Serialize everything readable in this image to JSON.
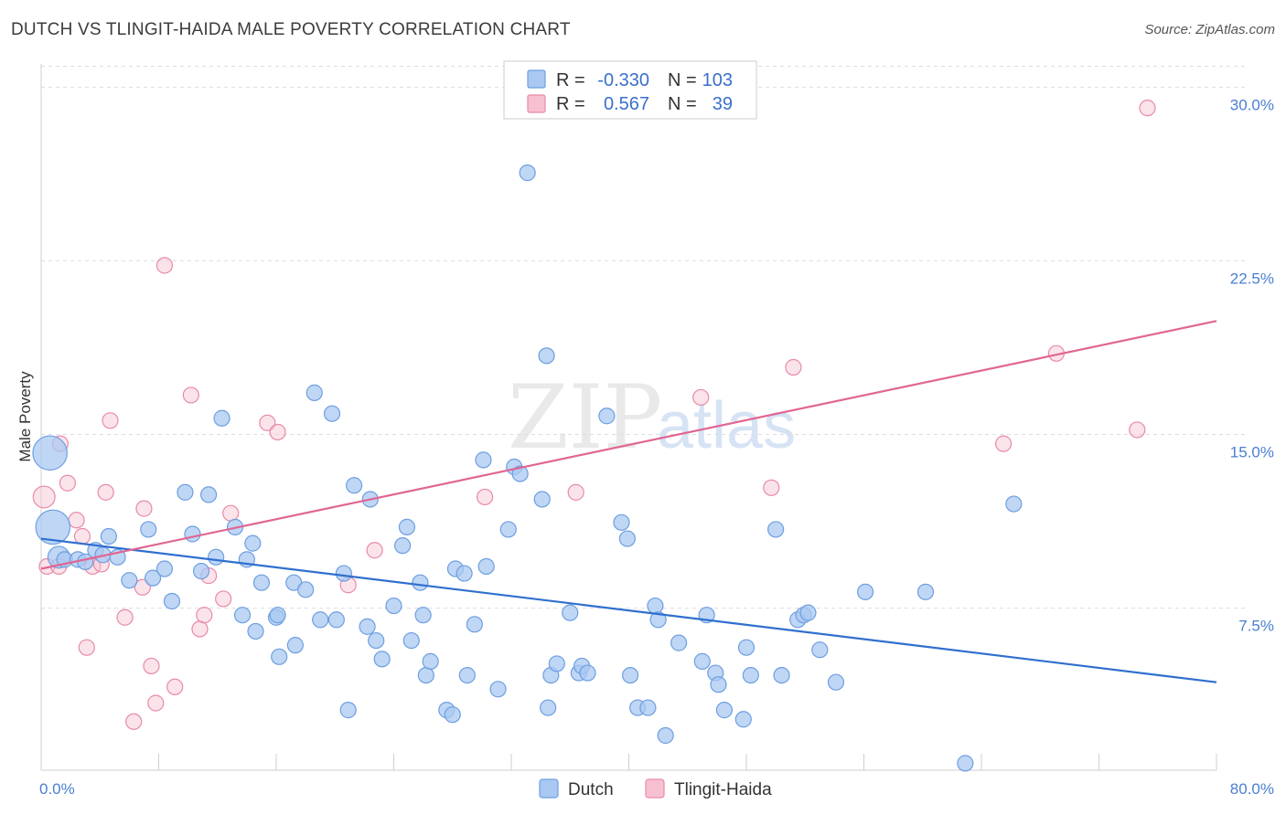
{
  "title": "DUTCH VS TLINGIT-HAIDA MALE POVERTY CORRELATION CHART",
  "source": "Source: ZipAtlas.com",
  "watermark": {
    "zip": "ZIP",
    "atlas": "atlas"
  },
  "colors": {
    "dutch_fill": "#a9c8f2",
    "dutch_stroke": "#6d9fe0",
    "dutch_line": "#2f6fcf",
    "tlingit_fill": "#f7c0d1",
    "tlingit_stroke": "#e88aa8",
    "tlingit_line": "#e06692",
    "tick_label": "#4a7fd0",
    "grid": "#dddddd"
  },
  "legend": {
    "rows": [
      {
        "r_label": "R =",
        "r_value": "-0.330",
        "n_label": "N =",
        "n_value": "103"
      },
      {
        "r_label": "R =",
        "r_value": "0.567",
        "n_label": "N =",
        "n_value": "39"
      }
    ]
  },
  "chart_data": {
    "type": "scatter",
    "ylabel": "Male Poverty",
    "xlim": [
      0,
      80
    ],
    "ylim": [
      0.5,
      31
    ],
    "x_tick_labels": [
      "0.0%",
      "80.0%"
    ],
    "y_ticks": [
      7.5,
      15.0,
      22.5,
      30.0
    ],
    "y_tick_labels": [
      "7.5%",
      "15.0%",
      "22.5%",
      "30.0%"
    ],
    "grid": true,
    "legend_position": "top-center",
    "series": [
      {
        "name": "Dutch",
        "r": -0.33,
        "n": 103,
        "trend": {
          "x": [
            0,
            80
          ],
          "y": [
            10.5,
            4.3
          ]
        },
        "points": [
          [
            0.6,
            14.2,
            2.2
          ],
          [
            0.8,
            11.0,
            2.2
          ],
          [
            1.2,
            9.7,
            1.4
          ],
          [
            1.6,
            9.6,
            1
          ],
          [
            2.5,
            9.6,
            1
          ],
          [
            3.0,
            9.5,
            1
          ],
          [
            3.7,
            10.0,
            1
          ],
          [
            4.6,
            10.6,
            1
          ],
          [
            4.2,
            9.8,
            1
          ],
          [
            5.2,
            9.7,
            1
          ],
          [
            6.0,
            8.7,
            1
          ],
          [
            7.6,
            8.8,
            1
          ],
          [
            7.3,
            10.9,
            1
          ],
          [
            8.4,
            9.2,
            1
          ],
          [
            8.9,
            7.8,
            1
          ],
          [
            9.8,
            12.5,
            1
          ],
          [
            10.3,
            10.7,
            1
          ],
          [
            10.9,
            9.1,
            1
          ],
          [
            11.4,
            12.4,
            1
          ],
          [
            11.9,
            9.7,
            1
          ],
          [
            12.3,
            15.7,
            1
          ],
          [
            13.2,
            11.0,
            1
          ],
          [
            13.7,
            7.2,
            1
          ],
          [
            14.4,
            10.3,
            1
          ],
          [
            14.6,
            6.5,
            1
          ],
          [
            15.0,
            8.6,
            1
          ],
          [
            16.0,
            7.1,
            1
          ],
          [
            16.1,
            7.2,
            1
          ],
          [
            16.2,
            5.4,
            1
          ],
          [
            17.2,
            8.6,
            1
          ],
          [
            17.3,
            5.9,
            1
          ],
          [
            18.0,
            8.3,
            1
          ],
          [
            18.6,
            16.8,
            1
          ],
          [
            19.0,
            7.0,
            1
          ],
          [
            19.8,
            15.9,
            1
          ],
          [
            20.1,
            7.0,
            1
          ],
          [
            20.6,
            9.0,
            1
          ],
          [
            20.9,
            3.1,
            1
          ],
          [
            21.3,
            12.8,
            1
          ],
          [
            22.2,
            6.7,
            1
          ],
          [
            22.4,
            12.2,
            1
          ],
          [
            22.8,
            6.1,
            1
          ],
          [
            23.2,
            5.3,
            1
          ],
          [
            24.0,
            7.6,
            1
          ],
          [
            24.6,
            10.2,
            1
          ],
          [
            24.9,
            11.0,
            1
          ],
          [
            25.2,
            6.1,
            1
          ],
          [
            25.8,
            8.6,
            1
          ],
          [
            26.2,
            4.6,
            1
          ],
          [
            26.5,
            5.2,
            1
          ],
          [
            27.6,
            3.1,
            1
          ],
          [
            28.0,
            2.9,
            1
          ],
          [
            28.2,
            9.2,
            1
          ],
          [
            28.8,
            9.0,
            1
          ],
          [
            29.0,
            4.6,
            1
          ],
          [
            29.5,
            6.8,
            1
          ],
          [
            30.1,
            13.9,
            1
          ],
          [
            30.3,
            9.3,
            1
          ],
          [
            31.1,
            4.0,
            1
          ],
          [
            31.8,
            10.9,
            1
          ],
          [
            32.2,
            13.6,
            1
          ],
          [
            32.6,
            13.3,
            1
          ],
          [
            33.1,
            26.3,
            1
          ],
          [
            34.1,
            12.2,
            1
          ],
          [
            34.4,
            18.4,
            1
          ],
          [
            34.5,
            3.2,
            1
          ],
          [
            34.7,
            4.6,
            1
          ],
          [
            35.1,
            5.1,
            1
          ],
          [
            36.0,
            7.3,
            1
          ],
          [
            36.6,
            4.7,
            1
          ],
          [
            36.8,
            5.0,
            1
          ],
          [
            37.2,
            4.7,
            1
          ],
          [
            38.5,
            15.8,
            1
          ],
          [
            39.5,
            11.2,
            1
          ],
          [
            39.9,
            10.5,
            1
          ],
          [
            40.1,
            4.6,
            1
          ],
          [
            40.6,
            3.2,
            1
          ],
          [
            41.3,
            3.2,
            1
          ],
          [
            41.8,
            7.6,
            1
          ],
          [
            42.5,
            2.0,
            1
          ],
          [
            43.4,
            6.0,
            1
          ],
          [
            45.0,
            5.2,
            1
          ],
          [
            45.3,
            7.2,
            1
          ],
          [
            45.9,
            4.7,
            1
          ],
          [
            46.1,
            4.2,
            1
          ],
          [
            46.5,
            3.1,
            1
          ],
          [
            47.8,
            2.7,
            1
          ],
          [
            48.0,
            5.8,
            1
          ],
          [
            48.3,
            4.6,
            1
          ],
          [
            50.0,
            10.9,
            1
          ],
          [
            50.4,
            4.6,
            1
          ],
          [
            51.5,
            7.0,
            1
          ],
          [
            51.9,
            7.2,
            1
          ],
          [
            52.2,
            7.3,
            1
          ],
          [
            53.0,
            5.7,
            1
          ],
          [
            54.1,
            4.3,
            1
          ],
          [
            56.1,
            8.2,
            1
          ],
          [
            60.2,
            8.2,
            1
          ],
          [
            62.9,
            0.8,
            1
          ],
          [
            66.2,
            12.0,
            1
          ],
          [
            42.0,
            7.0,
            1
          ],
          [
            14.0,
            9.6,
            1
          ],
          [
            26.0,
            7.2,
            1
          ]
        ]
      },
      {
        "name": "Tlingit-Haida",
        "r": 0.567,
        "n": 39,
        "trend": {
          "x": [
            0,
            80
          ],
          "y": [
            9.2,
            19.9
          ]
        },
        "points": [
          [
            0.2,
            12.3,
            1.4
          ],
          [
            0.4,
            9.3,
            1
          ],
          [
            1.2,
            9.3,
            1
          ],
          [
            1.3,
            14.6,
            1
          ],
          [
            1.8,
            12.9,
            1
          ],
          [
            2.4,
            11.3,
            1
          ],
          [
            2.8,
            10.6,
            1
          ],
          [
            3.1,
            5.8,
            1
          ],
          [
            3.5,
            9.3,
            1
          ],
          [
            4.1,
            9.4,
            1
          ],
          [
            4.4,
            12.5,
            1
          ],
          [
            4.7,
            15.6,
            1
          ],
          [
            5.7,
            7.1,
            1
          ],
          [
            6.3,
            2.6,
            1
          ],
          [
            6.9,
            8.4,
            1
          ],
          [
            7.0,
            11.8,
            1
          ],
          [
            7.5,
            5.0,
            1
          ],
          [
            7.8,
            3.4,
            1
          ],
          [
            8.4,
            22.3,
            1
          ],
          [
            9.1,
            4.1,
            1
          ],
          [
            10.2,
            16.7,
            1
          ],
          [
            10.8,
            6.6,
            1
          ],
          [
            11.1,
            7.2,
            1
          ],
          [
            11.4,
            8.9,
            1
          ],
          [
            12.4,
            7.9,
            1
          ],
          [
            12.9,
            11.6,
            1
          ],
          [
            15.4,
            15.5,
            1
          ],
          [
            16.1,
            15.1,
            1
          ],
          [
            20.9,
            8.5,
            1
          ],
          [
            22.7,
            10.0,
            1
          ],
          [
            30.2,
            12.3,
            1
          ],
          [
            36.4,
            12.5,
            1
          ],
          [
            44.9,
            16.6,
            1
          ],
          [
            49.7,
            12.7,
            1
          ],
          [
            51.2,
            17.9,
            1
          ],
          [
            65.5,
            14.6,
            1
          ],
          [
            69.1,
            18.5,
            1
          ],
          [
            74.6,
            15.2,
            1
          ],
          [
            75.3,
            29.1,
            1
          ]
        ]
      }
    ]
  }
}
